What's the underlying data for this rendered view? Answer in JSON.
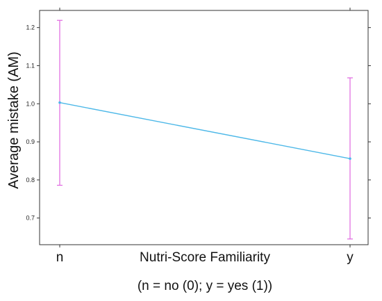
{
  "chart_data": {
    "type": "line",
    "categories": [
      "n",
      "y"
    ],
    "series": [
      {
        "values": [
          1.003,
          0.856
        ],
        "lower": [
          0.786,
          0.645
        ],
        "upper": [
          1.219,
          1.068
        ]
      }
    ],
    "xlabel": "Nutri-Score Familiarity",
    "xlabel_note": "(n = no (0); y = yes (1))",
    "ylabel": "Average mistake (AM)",
    "ylim": [
      0.63,
      1.245
    ],
    "yticks": [
      0.7,
      0.8,
      0.9,
      1.0,
      1.1,
      1.2
    ],
    "ytick_labels": [
      "0.7",
      "0.8",
      "0.9",
      "1.0",
      "1.1",
      "1.2"
    ],
    "grid": false,
    "colors": {
      "line": "#4db8e8",
      "error_bar": "#e066e0",
      "frame": "#333333"
    }
  }
}
